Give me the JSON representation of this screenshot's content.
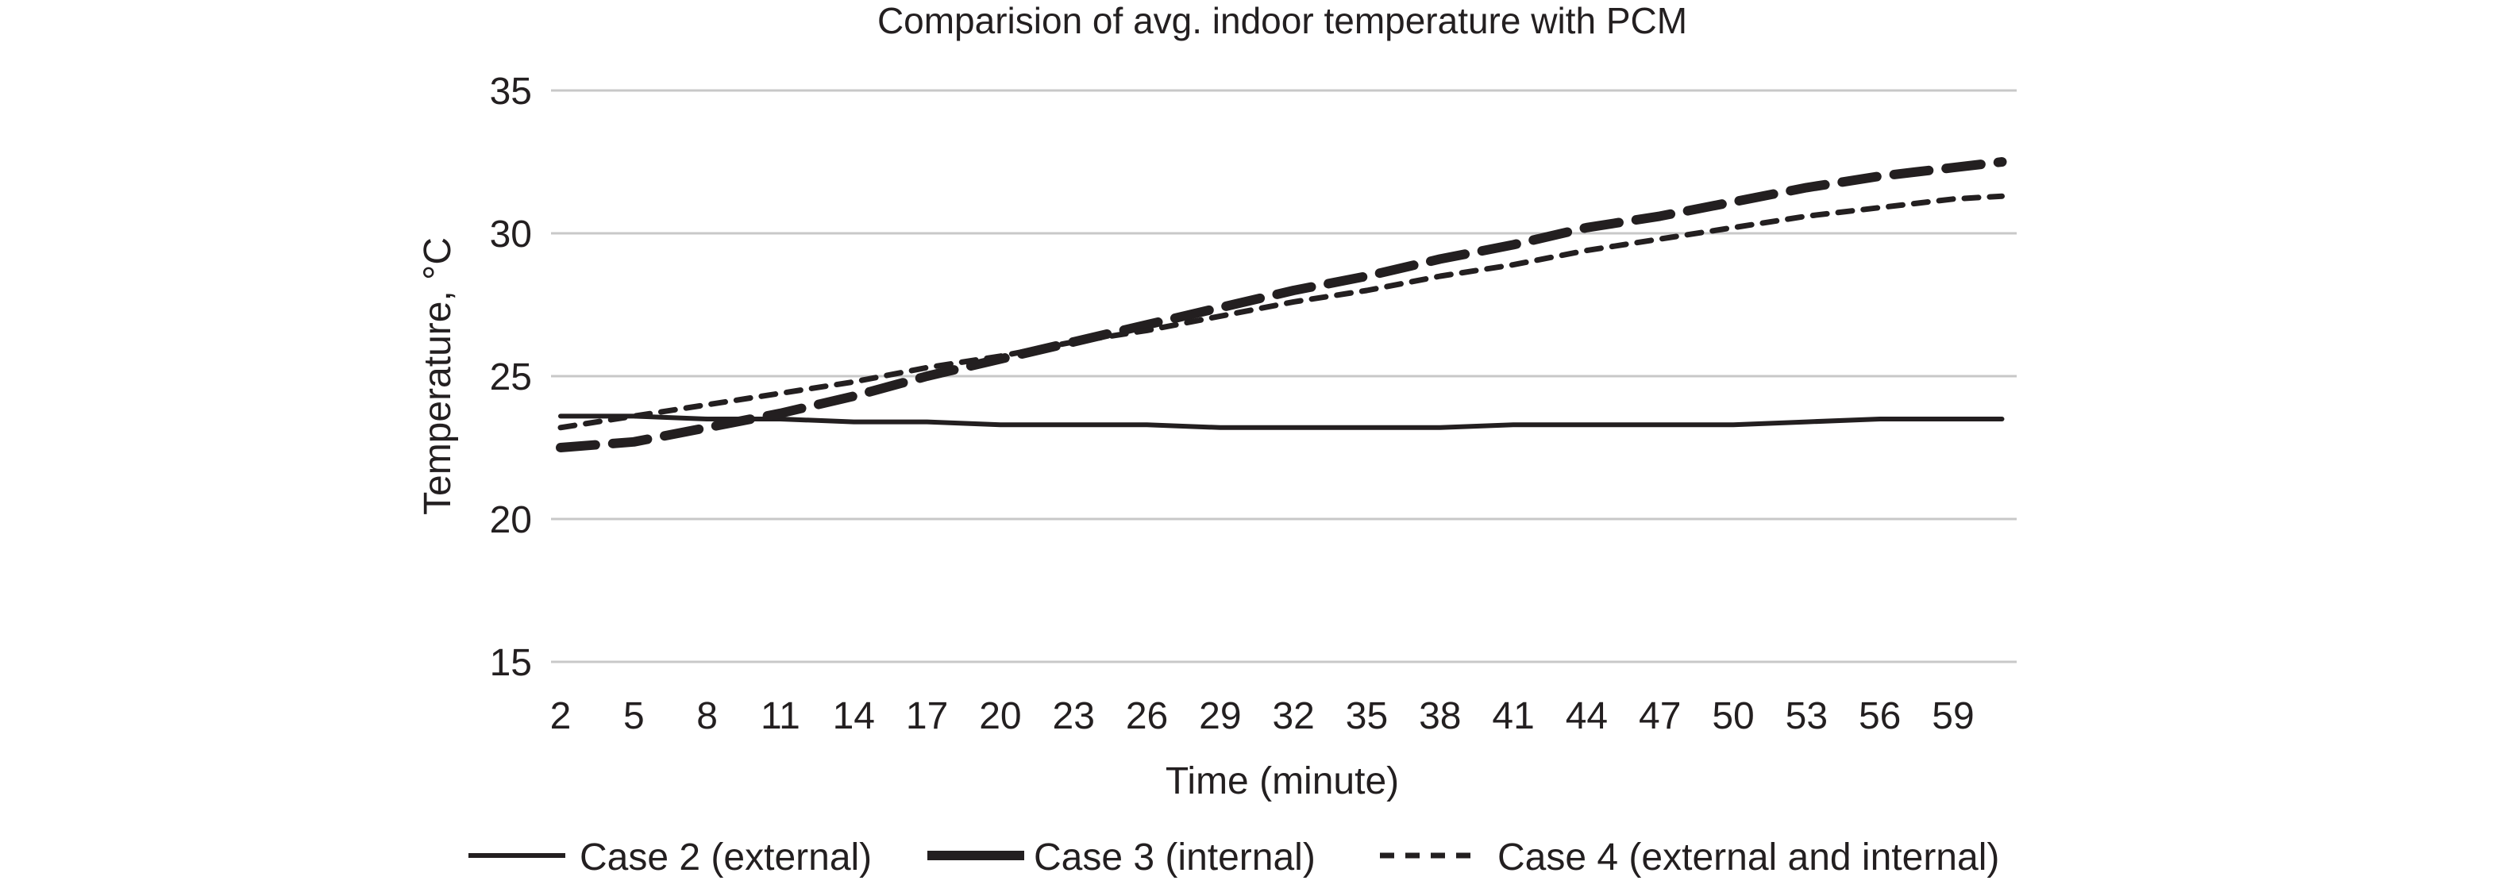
{
  "chart_data": {
    "type": "line",
    "title": "Comparision of avg. indoor temperature with PCM",
    "xlabel": "Time (minute)",
    "ylabel": "Temperature, °C",
    "ylim": [
      15,
      35
    ],
    "yticks": [
      "15",
      "20",
      "25",
      "30",
      "35"
    ],
    "xticks": [
      "2",
      "5",
      "8",
      "11",
      "14",
      "17",
      "20",
      "23",
      "26",
      "29",
      "32",
      "35",
      "38",
      "41",
      "44",
      "47",
      "50",
      "53",
      "56",
      "59"
    ],
    "x": [
      2,
      5,
      8,
      11,
      14,
      17,
      20,
      23,
      26,
      29,
      32,
      35,
      38,
      41,
      44,
      47,
      50,
      53,
      56,
      59,
      61
    ],
    "xlim": [
      2,
      61
    ],
    "grid": true,
    "legend_position": "bottom",
    "series": [
      {
        "name": "Case 2 (external)",
        "style": "solid",
        "color": "#231f20",
        "values": [
          23.6,
          23.6,
          23.5,
          23.5,
          23.4,
          23.4,
          23.3,
          23.3,
          23.3,
          23.2,
          23.2,
          23.2,
          23.2,
          23.3,
          23.3,
          23.3,
          23.3,
          23.4,
          23.5,
          23.5,
          23.5
        ]
      },
      {
        "name": "Case 3 (internal)",
        "style": "long-dash",
        "color": "#231f20",
        "values": [
          22.5,
          22.7,
          23.2,
          23.7,
          24.3,
          25.0,
          25.6,
          26.2,
          26.8,
          27.4,
          28.0,
          28.5,
          29.1,
          29.6,
          30.2,
          30.6,
          31.1,
          31.6,
          32.0,
          32.3,
          32.5
        ]
      },
      {
        "name": "Case 4 (external and internal)",
        "style": "short-dash",
        "color": "#231f20",
        "values": [
          23.2,
          23.6,
          24.0,
          24.4,
          24.8,
          25.3,
          25.7,
          26.2,
          26.6,
          27.1,
          27.6,
          28.0,
          28.5,
          28.9,
          29.4,
          29.8,
          30.2,
          30.6,
          30.9,
          31.2,
          31.3
        ]
      }
    ]
  }
}
